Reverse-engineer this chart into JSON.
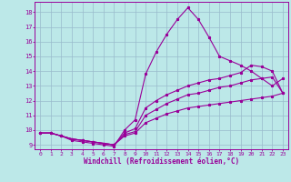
{
  "background_color": "#bce8e8",
  "line_color": "#990099",
  "grid_color": "#99bbcc",
  "xlabel": "Windchill (Refroidissement éolien,°C)",
  "xlim": [
    -0.5,
    23.5
  ],
  "ylim": [
    8.7,
    18.7
  ],
  "yticks": [
    9,
    10,
    11,
    12,
    13,
    14,
    15,
    16,
    17,
    18
  ],
  "xticks": [
    0,
    1,
    2,
    3,
    4,
    5,
    6,
    7,
    8,
    9,
    10,
    11,
    12,
    13,
    14,
    15,
    16,
    17,
    18,
    19,
    20,
    21,
    22,
    23
  ],
  "line1_x": [
    0,
    1,
    2,
    3,
    4,
    5,
    6,
    7,
    8,
    9,
    10,
    11,
    12,
    13,
    14,
    15,
    16,
    17,
    18,
    19,
    20,
    21,
    22,
    23
  ],
  "line1_y": [
    9.8,
    9.8,
    9.6,
    9.3,
    9.2,
    9.1,
    9.0,
    8.9,
    10.0,
    10.7,
    13.8,
    15.3,
    16.5,
    17.5,
    18.3,
    17.5,
    16.3,
    15.0,
    14.7,
    14.4,
    14.0,
    13.5,
    13.0,
    13.5
  ],
  "line2_x": [
    0,
    1,
    2,
    3,
    4,
    5,
    6,
    7,
    8,
    9,
    10,
    11,
    12,
    13,
    14,
    15,
    16,
    17,
    18,
    19,
    20,
    21,
    22,
    23
  ],
  "line2_y": [
    9.8,
    9.8,
    9.6,
    9.4,
    9.3,
    9.2,
    9.1,
    9.0,
    9.8,
    10.1,
    11.5,
    12.0,
    12.4,
    12.7,
    13.0,
    13.2,
    13.4,
    13.5,
    13.7,
    13.9,
    14.4,
    14.3,
    14.0,
    12.5
  ],
  "line3_x": [
    0,
    1,
    2,
    3,
    4,
    5,
    6,
    7,
    8,
    9,
    10,
    11,
    12,
    13,
    14,
    15,
    16,
    17,
    18,
    19,
    20,
    21,
    22,
    23
  ],
  "line3_y": [
    9.8,
    9.8,
    9.6,
    9.4,
    9.3,
    9.2,
    9.1,
    9.0,
    9.7,
    9.9,
    11.0,
    11.4,
    11.8,
    12.1,
    12.4,
    12.5,
    12.7,
    12.9,
    13.0,
    13.2,
    13.4,
    13.5,
    13.6,
    12.5
  ],
  "line4_x": [
    0,
    1,
    2,
    3,
    4,
    5,
    6,
    7,
    8,
    9,
    10,
    11,
    12,
    13,
    14,
    15,
    16,
    17,
    18,
    19,
    20,
    21,
    22,
    23
  ],
  "line4_y": [
    9.8,
    9.8,
    9.6,
    9.4,
    9.3,
    9.2,
    9.1,
    9.0,
    9.6,
    9.8,
    10.5,
    10.8,
    11.1,
    11.3,
    11.5,
    11.6,
    11.7,
    11.8,
    11.9,
    12.0,
    12.1,
    12.2,
    12.3,
    12.5
  ]
}
